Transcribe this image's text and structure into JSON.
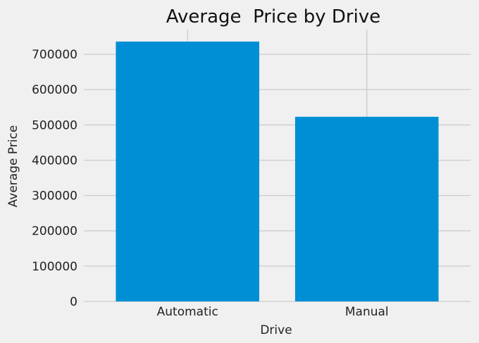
{
  "chart_data": {
    "type": "bar",
    "title": "Average  Price by Drive",
    "xlabel": "Drive",
    "ylabel": "Average Price",
    "categories": [
      "Automatic",
      "Manual"
    ],
    "values": [
      736000,
      523000
    ],
    "ylim": [
      0,
      770000
    ],
    "yticks": [
      0,
      100000,
      200000,
      300000,
      400000,
      500000,
      600000,
      700000
    ],
    "ytick_labels": [
      "0",
      "100000",
      "200000",
      "300000",
      "400000",
      "500000",
      "600000",
      "700000"
    ],
    "bar_color": "#008fd5",
    "background": "#f0f0f0",
    "grid": true
  }
}
